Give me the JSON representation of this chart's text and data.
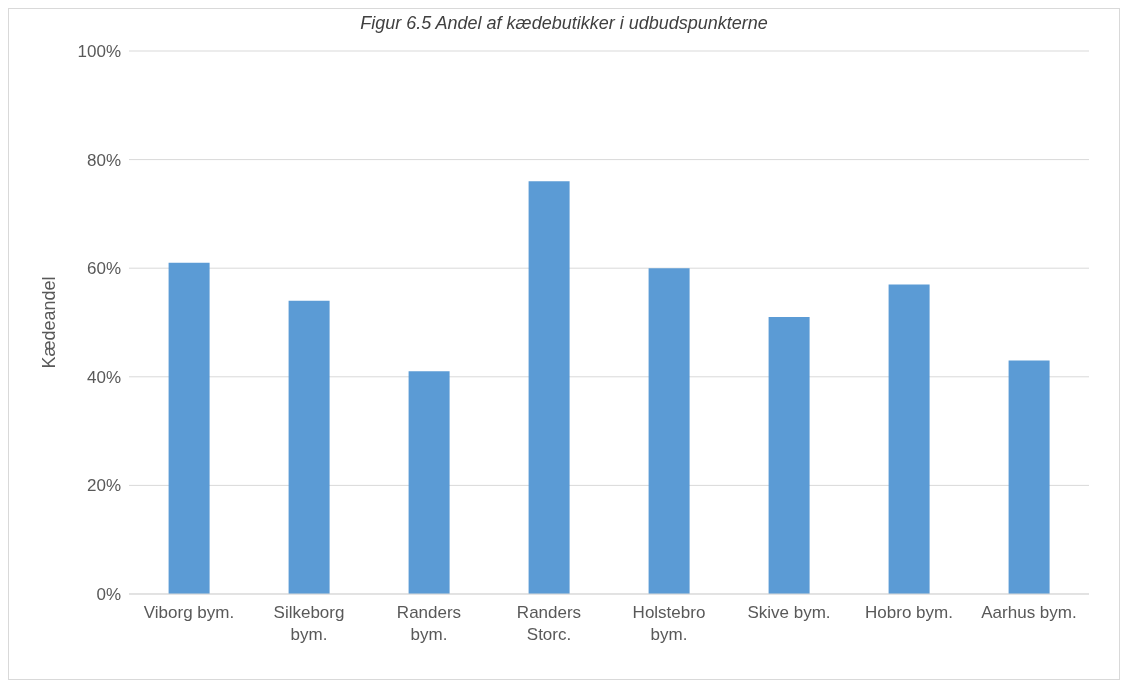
{
  "chart_data": {
    "type": "bar",
    "title": "Figur 6.5 Andel af kædebutikker i udbudspunkterne",
    "ylabel": "Kædeandel",
    "categories": [
      "Viborg bym.",
      "Silkeborg bym.",
      "Randers bym.",
      "Randers Storc.",
      "Holstebro bym.",
      "Skive bym.",
      "Hobro bym.",
      "Aarhus bym."
    ],
    "values": [
      61,
      54,
      41,
      76,
      60,
      51,
      57,
      43
    ],
    "color": "#5b9bd5",
    "ylim": [
      0,
      100
    ],
    "yticks": [
      {
        "value": 0,
        "label": "0%"
      },
      {
        "value": 20,
        "label": "20%"
      },
      {
        "value": 40,
        "label": "40%"
      },
      {
        "value": 60,
        "label": "60%"
      },
      {
        "value": 80,
        "label": "80%"
      },
      {
        "value": 100,
        "label": "100%"
      }
    ],
    "grid": "y",
    "legend": false
  }
}
